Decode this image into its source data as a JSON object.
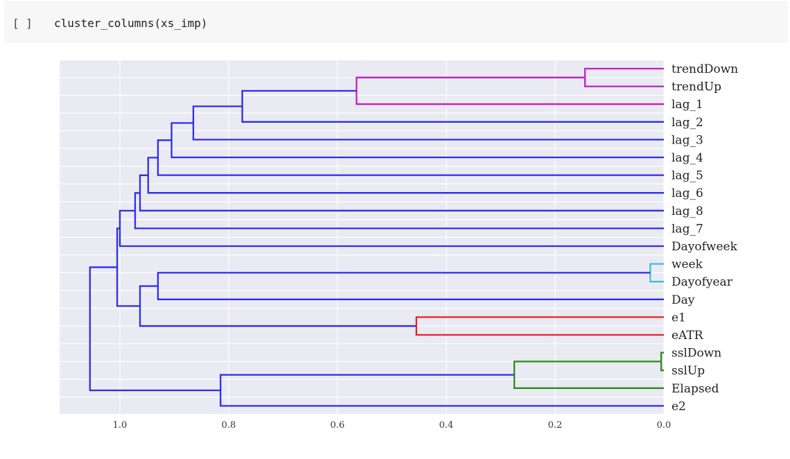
{
  "cell": {
    "prompt": "[ ]",
    "code": "cluster_columns(xs_imp)"
  },
  "colors": {
    "axes_bg": "#eaeaf2",
    "grid": "#ffffff",
    "default_link": "#2c2cf2",
    "cluster_colors": [
      "#c020c0",
      "#40bfcf",
      "#f02020",
      "#2a8a1a"
    ]
  },
  "chart_data": {
    "type": "dendrogram",
    "orientation": "left",
    "xlim": [
      1.1,
      0.0
    ],
    "xticks": [
      1.0,
      0.8,
      0.6,
      0.4,
      0.2,
      0.0
    ],
    "xtick_labels": [
      "1.0",
      "0.8",
      "0.6",
      "0.4",
      "0.2",
      "0.0"
    ],
    "grid": true,
    "leaves": [
      "trendDown",
      "trendUp",
      "lag_1",
      "lag_2",
      "lag_3",
      "lag_4",
      "lag_5",
      "lag_6",
      "lag_8",
      "lag_7",
      "Dayofweek",
      "week",
      "Dayofyear",
      "Day",
      "e1",
      "eATR",
      "sslDown",
      "sslUp",
      "Elapsed",
      "e2"
    ],
    "links": [
      {
        "left": "trendDown",
        "right": "trendUp",
        "height": 0.145,
        "color": "#c020c0"
      },
      {
        "left": "week",
        "right": "Dayofyear",
        "height": 0.025,
        "color": "#40bfcf"
      },
      {
        "left": "sslDown",
        "right": "sslUp",
        "height": 0.005,
        "color": "#2a8a1a"
      },
      {
        "left": "e1",
        "right": "eATR",
        "height": 0.455,
        "color": "#f02020"
      },
      {
        "left": "trendDown+trendUp",
        "right": "lag_1",
        "height": 0.565,
        "color": "#c020c0"
      },
      {
        "left": "sslDown+sslUp",
        "right": "Elapsed",
        "height": 0.275,
        "color": "#2a8a1a"
      },
      {
        "left": "trendDown..lag_1",
        "right": "lag_2",
        "height": 0.775,
        "color": "#2c2cf2"
      },
      {
        "left": "trendDown..lag_2",
        "right": "lag_3",
        "height": 0.865,
        "color": "#2c2cf2"
      },
      {
        "left": "trendDown..lag_3",
        "right": "lag_4",
        "height": 0.905,
        "color": "#2c2cf2"
      },
      {
        "left": "trendDown..lag_4",
        "right": "lag_5",
        "height": 0.93,
        "color": "#2c2cf2"
      },
      {
        "left": "trendDown..lag_5",
        "right": "lag_6",
        "height": 0.948,
        "color": "#2c2cf2"
      },
      {
        "left": "trendDown..lag_6",
        "right": "lag_8",
        "height": 0.963,
        "color": "#2c2cf2"
      },
      {
        "left": "trendDown..lag_8",
        "right": "lag_7",
        "height": 0.972,
        "color": "#2c2cf2"
      },
      {
        "left": "trendDown..lag_7",
        "right": "Dayofweek",
        "height": 1.0,
        "color": "#2c2cf2"
      },
      {
        "left": "week+Dayofyear",
        "right": "Day",
        "height": 0.93,
        "color": "#2c2cf2"
      },
      {
        "left": "week..Day",
        "right": "e1+eATR",
        "height": 0.963,
        "color": "#2c2cf2"
      },
      {
        "left": "trendDown..Dayofweek",
        "right": "week..eATR",
        "height": 1.005,
        "color": "#2c2cf2"
      },
      {
        "left": "sslDown..Elapsed",
        "right": "e2",
        "height": 0.815,
        "color": "#2c2cf2"
      },
      {
        "left": "trendDown..eATR",
        "right": "sslDown..e2",
        "height": 1.055,
        "color": "#2c2cf2"
      }
    ]
  }
}
